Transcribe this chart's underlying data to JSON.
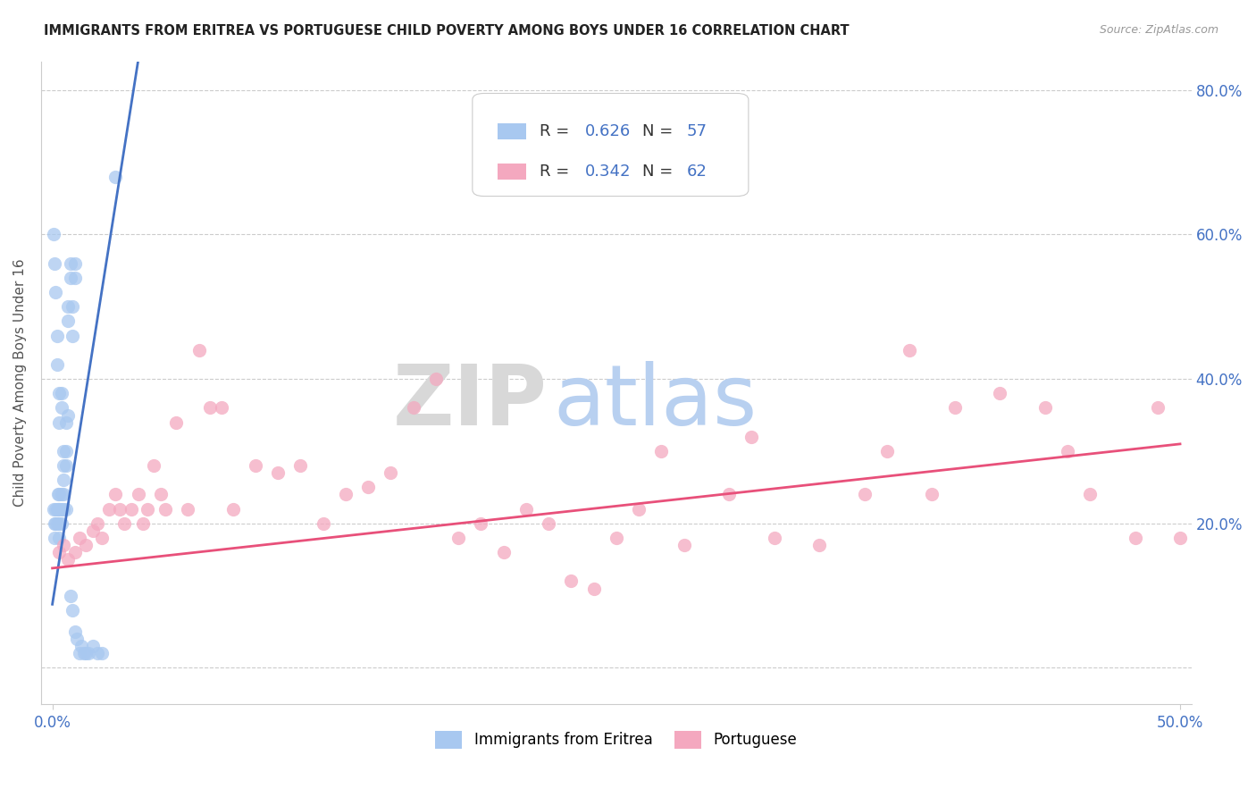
{
  "title": "IMMIGRANTS FROM ERITREA VS PORTUGUESE CHILD POVERTY AMONG BOYS UNDER 16 CORRELATION CHART",
  "source": "Source: ZipAtlas.com",
  "ylabel": "Child Poverty Among Boys Under 16",
  "xlim": [
    -0.005,
    0.505
  ],
  "ylim": [
    -0.05,
    0.84
  ],
  "yticks": [
    0.0,
    0.2,
    0.4,
    0.6,
    0.8
  ],
  "xtick_labels_show": [
    "0.0%",
    "50.0%"
  ],
  "xtick_positions_show": [
    0.0,
    0.5
  ],
  "legend_label1": "Immigrants from Eritrea",
  "legend_label2": "Portuguese",
  "color_eritrea": "#a8c8f0",
  "color_portuguese": "#f4a8bf",
  "color_line_eritrea": "#4472c4",
  "color_line_portuguese": "#e8507a",
  "watermark_zip": "ZIP",
  "watermark_atlas": "atlas",
  "watermark_zip_color": "#d8d8d8",
  "watermark_atlas_color": "#b8d0f0",
  "background_color": "#ffffff",
  "grid_color": "#cccccc",
  "eritrea_x": [
    0.0005,
    0.001,
    0.001,
    0.0015,
    0.0015,
    0.002,
    0.002,
    0.0025,
    0.0025,
    0.003,
    0.003,
    0.003,
    0.003,
    0.0035,
    0.004,
    0.004,
    0.004,
    0.005,
    0.005,
    0.005,
    0.006,
    0.006,
    0.007,
    0.007,
    0.008,
    0.008,
    0.009,
    0.009,
    0.01,
    0.01,
    0.0005,
    0.001,
    0.0015,
    0.002,
    0.002,
    0.003,
    0.003,
    0.004,
    0.004,
    0.005,
    0.005,
    0.006,
    0.006,
    0.007,
    0.008,
    0.009,
    0.01,
    0.011,
    0.012,
    0.013,
    0.014,
    0.015,
    0.016,
    0.018,
    0.02,
    0.022,
    0.028
  ],
  "eritrea_y": [
    0.22,
    0.2,
    0.18,
    0.22,
    0.2,
    0.22,
    0.2,
    0.24,
    0.22,
    0.22,
    0.24,
    0.2,
    0.18,
    0.22,
    0.24,
    0.22,
    0.2,
    0.26,
    0.24,
    0.22,
    0.28,
    0.22,
    0.5,
    0.48,
    0.56,
    0.54,
    0.5,
    0.46,
    0.56,
    0.54,
    0.6,
    0.56,
    0.52,
    0.46,
    0.42,
    0.38,
    0.34,
    0.38,
    0.36,
    0.3,
    0.28,
    0.34,
    0.3,
    0.35,
    0.1,
    0.08,
    0.05,
    0.04,
    0.02,
    0.03,
    0.02,
    0.02,
    0.02,
    0.03,
    0.02,
    0.02,
    0.68
  ],
  "portuguese_x": [
    0.003,
    0.005,
    0.007,
    0.01,
    0.012,
    0.015,
    0.018,
    0.02,
    0.022,
    0.025,
    0.028,
    0.03,
    0.032,
    0.035,
    0.038,
    0.04,
    0.042,
    0.045,
    0.048,
    0.05,
    0.055,
    0.06,
    0.065,
    0.07,
    0.075,
    0.08,
    0.09,
    0.1,
    0.11,
    0.12,
    0.13,
    0.14,
    0.15,
    0.16,
    0.17,
    0.18,
    0.19,
    0.2,
    0.21,
    0.22,
    0.23,
    0.24,
    0.25,
    0.26,
    0.27,
    0.28,
    0.3,
    0.31,
    0.32,
    0.34,
    0.36,
    0.37,
    0.38,
    0.39,
    0.4,
    0.42,
    0.44,
    0.45,
    0.46,
    0.48,
    0.49,
    0.5
  ],
  "portuguese_y": [
    0.16,
    0.17,
    0.15,
    0.16,
    0.18,
    0.17,
    0.19,
    0.2,
    0.18,
    0.22,
    0.24,
    0.22,
    0.2,
    0.22,
    0.24,
    0.2,
    0.22,
    0.28,
    0.24,
    0.22,
    0.34,
    0.22,
    0.44,
    0.36,
    0.36,
    0.22,
    0.28,
    0.27,
    0.28,
    0.2,
    0.24,
    0.25,
    0.27,
    0.36,
    0.4,
    0.18,
    0.2,
    0.16,
    0.22,
    0.2,
    0.12,
    0.11,
    0.18,
    0.22,
    0.3,
    0.17,
    0.24,
    0.32,
    0.18,
    0.17,
    0.24,
    0.3,
    0.44,
    0.24,
    0.36,
    0.38,
    0.36,
    0.3,
    0.24,
    0.18,
    0.36,
    0.18
  ],
  "eritrea_line_x": [
    0.0,
    0.038
  ],
  "eritrea_line_y": [
    0.088,
    0.84
  ],
  "portuguese_line_x": [
    0.0,
    0.5
  ],
  "portuguese_line_y": [
    0.138,
    0.31
  ]
}
